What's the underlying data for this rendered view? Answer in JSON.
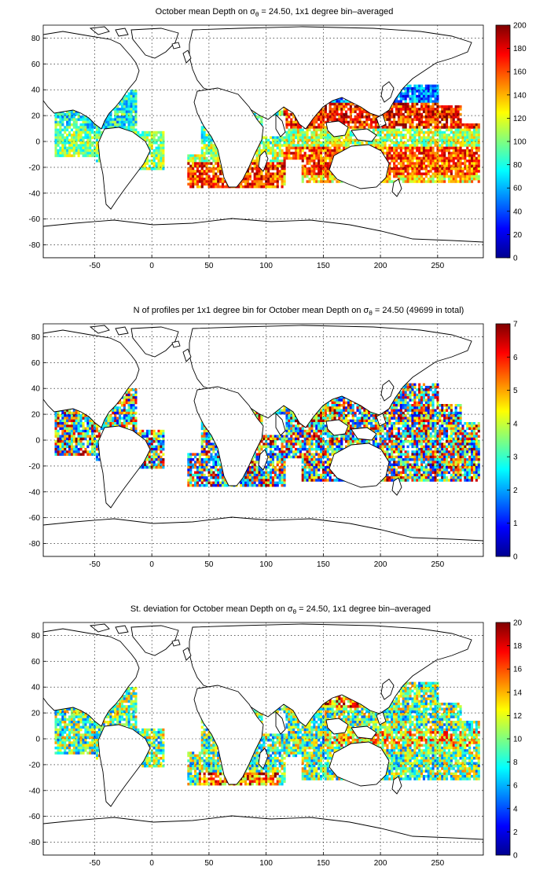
{
  "panels": [
    {
      "title_prefix": "October mean Depth on σ",
      "title_sub": "θ",
      "title_suffix": " = 24.50, 1x1 degree bin–averaged",
      "field": "depth",
      "colorbar": {
        "min": 0,
        "max": 200,
        "ticks": [
          "0",
          "20",
          "40",
          "60",
          "80",
          "100",
          "120",
          "140",
          "160",
          "180",
          "200"
        ]
      }
    },
    {
      "title_prefix": "N of profiles per 1x1 degree bin for October mean Depth on σ",
      "title_sub": "θ",
      "title_suffix": " = 24.50 (49699 in total)",
      "field": "count",
      "colorbar": {
        "min": 0,
        "max": 7,
        "ticks": [
          "0",
          "1",
          "2",
          "3",
          "4",
          "5",
          "6",
          "7"
        ]
      }
    },
    {
      "title_prefix": "St. deviation for October mean Depth on σ",
      "title_sub": "θ",
      "title_suffix": " = 24.50, 1x1 degree bin–averaged",
      "field": "std",
      "colorbar": {
        "min": 0,
        "max": 20,
        "ticks": [
          "0",
          "2",
          "4",
          "6",
          "8",
          "10",
          "12",
          "14",
          "16",
          "18",
          "20"
        ]
      }
    }
  ],
  "map_axes": {
    "lon_range": [
      -95,
      290
    ],
    "lat_range": [
      -90,
      90
    ],
    "x_ticks": [
      "-50",
      "0",
      "50",
      "100",
      "150",
      "200",
      "250"
    ],
    "y_ticks": [
      "80",
      "60",
      "40",
      "20",
      "0",
      "-20",
      "-40",
      "-60",
      "-80"
    ]
  },
  "colormap": "jet"
}
